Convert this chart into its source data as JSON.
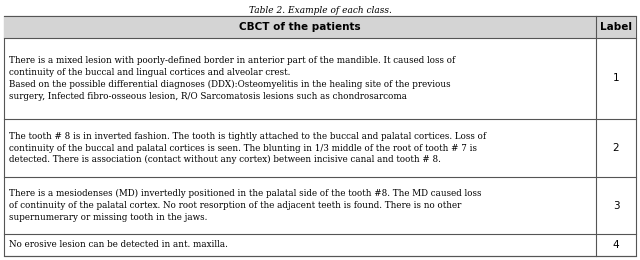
{
  "title": "Table 2. Example of each class.",
  "title_fontsize": 6.5,
  "col1_header": "CBCT of the patients",
  "col2_header": "Label",
  "rows": [
    {
      "text": "There is a mixed lesion with poorly-defined border in anterior part of the mandible. It caused loss of\ncontinuity of the buccal and lingual cortices and alveolar crest.\nBased on the possible differential diagnoses (DDX):Osteomyelitis in the healing site of the previous\nsurgery, Infected fibro-osseous lesion, R/O Sarcomatosis lesions such as chondrosarcoma",
      "label": "1"
    },
    {
      "text": "The tooth # 8 is in inverted fashion. The tooth is tightly attached to the buccal and palatal cortices. Loss of\ncontinuity of the buccal and palatal cortices is seen. The blunting in 1/3 middle of the root of tooth # 7 is\ndetected. There is association (contact without any cortex) between incisive canal and tooth # 8.",
      "label": "2"
    },
    {
      "text": "There is a mesiodenses (MD) invertedly positioned in the palatal side of the tooth #8. The MD caused loss\nof continuity of the palatal cortex. No root resorption of the adjacent teeth is found. There is no other\nsupernumerary or missing tooth in the jaws.",
      "label": "3"
    },
    {
      "text": "No erosive lesion can be detected in ant. maxilla.",
      "label": "4"
    }
  ],
  "header_bg": "#d4d4d4",
  "cell_bg": "#ffffff",
  "border_color": "#555555",
  "text_color": "#000000",
  "header_fontsize": 7.5,
  "cell_fontsize": 6.3,
  "label_fontsize": 7.5,
  "fig_width": 6.4,
  "fig_height": 2.6,
  "dpi": 100
}
